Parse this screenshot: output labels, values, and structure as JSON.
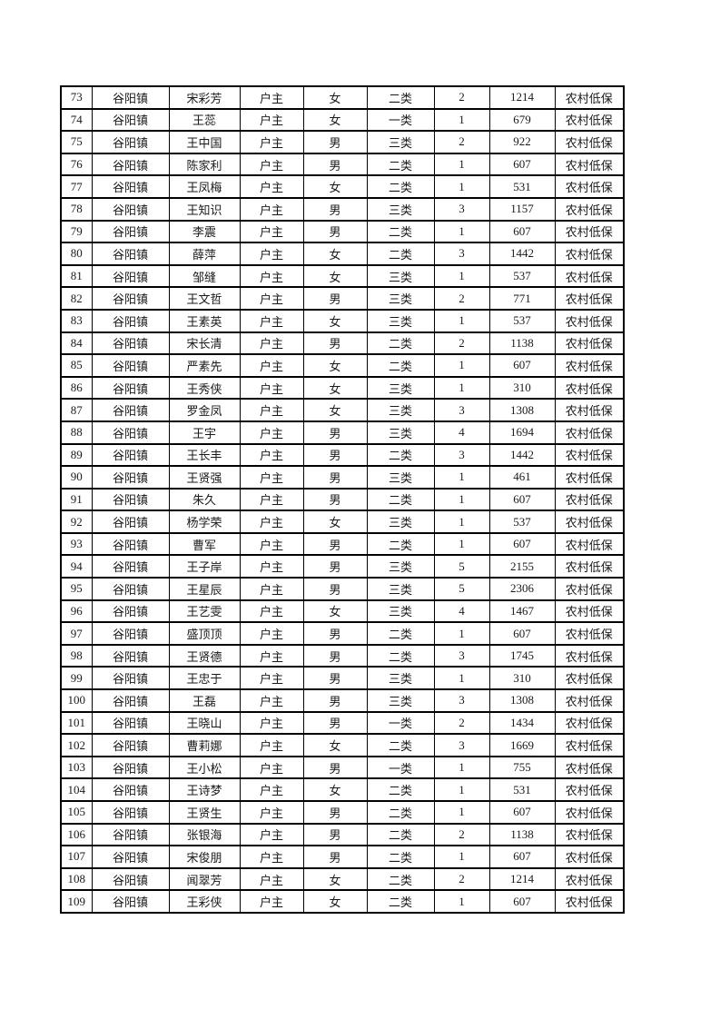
{
  "colors": {
    "page_background": "#ffffff",
    "table_border": "#000000",
    "text": "#1a1a1a"
  },
  "table": {
    "columns": [
      {
        "name": "serial"
      },
      {
        "name": "town"
      },
      {
        "name": "person-name"
      },
      {
        "name": "relation"
      },
      {
        "name": "gender"
      },
      {
        "name": "category"
      },
      {
        "name": "household-size"
      },
      {
        "name": "amount"
      },
      {
        "name": "assistance-type"
      }
    ],
    "rows": [
      [
        "73",
        "谷阳镇",
        "宋彩芳",
        "户主",
        "女",
        "二类",
        "2",
        "1214",
        "农村低保"
      ],
      [
        "74",
        "谷阳镇",
        "王蕊",
        "户主",
        "女",
        "一类",
        "1",
        "679",
        "农村低保"
      ],
      [
        "75",
        "谷阳镇",
        "王中国",
        "户主",
        "男",
        "三类",
        "2",
        "922",
        "农村低保"
      ],
      [
        "76",
        "谷阳镇",
        "陈家利",
        "户主",
        "男",
        "二类",
        "1",
        "607",
        "农村低保"
      ],
      [
        "77",
        "谷阳镇",
        "王凤梅",
        "户主",
        "女",
        "二类",
        "1",
        "531",
        "农村低保"
      ],
      [
        "78",
        "谷阳镇",
        "王知识",
        "户主",
        "男",
        "三类",
        "3",
        "1157",
        "农村低保"
      ],
      [
        "79",
        "谷阳镇",
        "李震",
        "户主",
        "男",
        "二类",
        "1",
        "607",
        "农村低保"
      ],
      [
        "80",
        "谷阳镇",
        "薛萍",
        "户主",
        "女",
        "二类",
        "3",
        "1442",
        "农村低保"
      ],
      [
        "81",
        "谷阳镇",
        "邹缝",
        "户主",
        "女",
        "三类",
        "1",
        "537",
        "农村低保"
      ],
      [
        "82",
        "谷阳镇",
        "王文哲",
        "户主",
        "男",
        "三类",
        "2",
        "771",
        "农村低保"
      ],
      [
        "83",
        "谷阳镇",
        "王素英",
        "户主",
        "女",
        "三类",
        "1",
        "537",
        "农村低保"
      ],
      [
        "84",
        "谷阳镇",
        "宋长清",
        "户主",
        "男",
        "二类",
        "2",
        "1138",
        "农村低保"
      ],
      [
        "85",
        "谷阳镇",
        "严素先",
        "户主",
        "女",
        "二类",
        "1",
        "607",
        "农村低保"
      ],
      [
        "86",
        "谷阳镇",
        "王秀侠",
        "户主",
        "女",
        "三类",
        "1",
        "310",
        "农村低保"
      ],
      [
        "87",
        "谷阳镇",
        "罗金凤",
        "户主",
        "女",
        "三类",
        "3",
        "1308",
        "农村低保"
      ],
      [
        "88",
        "谷阳镇",
        "王宇",
        "户主",
        "男",
        "三类",
        "4",
        "1694",
        "农村低保"
      ],
      [
        "89",
        "谷阳镇",
        "王长丰",
        "户主",
        "男",
        "二类",
        "3",
        "1442",
        "农村低保"
      ],
      [
        "90",
        "谷阳镇",
        "王贤强",
        "户主",
        "男",
        "三类",
        "1",
        "461",
        "农村低保"
      ],
      [
        "91",
        "谷阳镇",
        "朱久",
        "户主",
        "男",
        "二类",
        "1",
        "607",
        "农村低保"
      ],
      [
        "92",
        "谷阳镇",
        "杨学荣",
        "户主",
        "女",
        "三类",
        "1",
        "537",
        "农村低保"
      ],
      [
        "93",
        "谷阳镇",
        "曹军",
        "户主",
        "男",
        "二类",
        "1",
        "607",
        "农村低保"
      ],
      [
        "94",
        "谷阳镇",
        "王子岸",
        "户主",
        "男",
        "三类",
        "5",
        "2155",
        "农村低保"
      ],
      [
        "95",
        "谷阳镇",
        "王星辰",
        "户主",
        "男",
        "三类",
        "5",
        "2306",
        "农村低保"
      ],
      [
        "96",
        "谷阳镇",
        "王艺雯",
        "户主",
        "女",
        "三类",
        "4",
        "1467",
        "农村低保"
      ],
      [
        "97",
        "谷阳镇",
        "盛顶顶",
        "户主",
        "男",
        "二类",
        "1",
        "607",
        "农村低保"
      ],
      [
        "98",
        "谷阳镇",
        "王贤德",
        "户主",
        "男",
        "二类",
        "3",
        "1745",
        "农村低保"
      ],
      [
        "99",
        "谷阳镇",
        "王忠于",
        "户主",
        "男",
        "三类",
        "1",
        "310",
        "农村低保"
      ],
      [
        "100",
        "谷阳镇",
        "王磊",
        "户主",
        "男",
        "三类",
        "3",
        "1308",
        "农村低保"
      ],
      [
        "101",
        "谷阳镇",
        "王晓山",
        "户主",
        "男",
        "一类",
        "2",
        "1434",
        "农村低保"
      ],
      [
        "102",
        "谷阳镇",
        "曹莉娜",
        "户主",
        "女",
        "二类",
        "3",
        "1669",
        "农村低保"
      ],
      [
        "103",
        "谷阳镇",
        "王小松",
        "户主",
        "男",
        "一类",
        "1",
        "755",
        "农村低保"
      ],
      [
        "104",
        "谷阳镇",
        "王诗梦",
        "户主",
        "女",
        "二类",
        "1",
        "531",
        "农村低保"
      ],
      [
        "105",
        "谷阳镇",
        "王贤生",
        "户主",
        "男",
        "二类",
        "1",
        "607",
        "农村低保"
      ],
      [
        "106",
        "谷阳镇",
        "张银海",
        "户主",
        "男",
        "二类",
        "2",
        "1138",
        "农村低保"
      ],
      [
        "107",
        "谷阳镇",
        "宋俊朋",
        "户主",
        "男",
        "二类",
        "1",
        "607",
        "农村低保"
      ],
      [
        "108",
        "谷阳镇",
        "闻翠芳",
        "户主",
        "女",
        "二类",
        "2",
        "1214",
        "农村低保"
      ],
      [
        "109",
        "谷阳镇",
        "王彩侠",
        "户主",
        "女",
        "二类",
        "1",
        "607",
        "农村低保"
      ]
    ]
  }
}
